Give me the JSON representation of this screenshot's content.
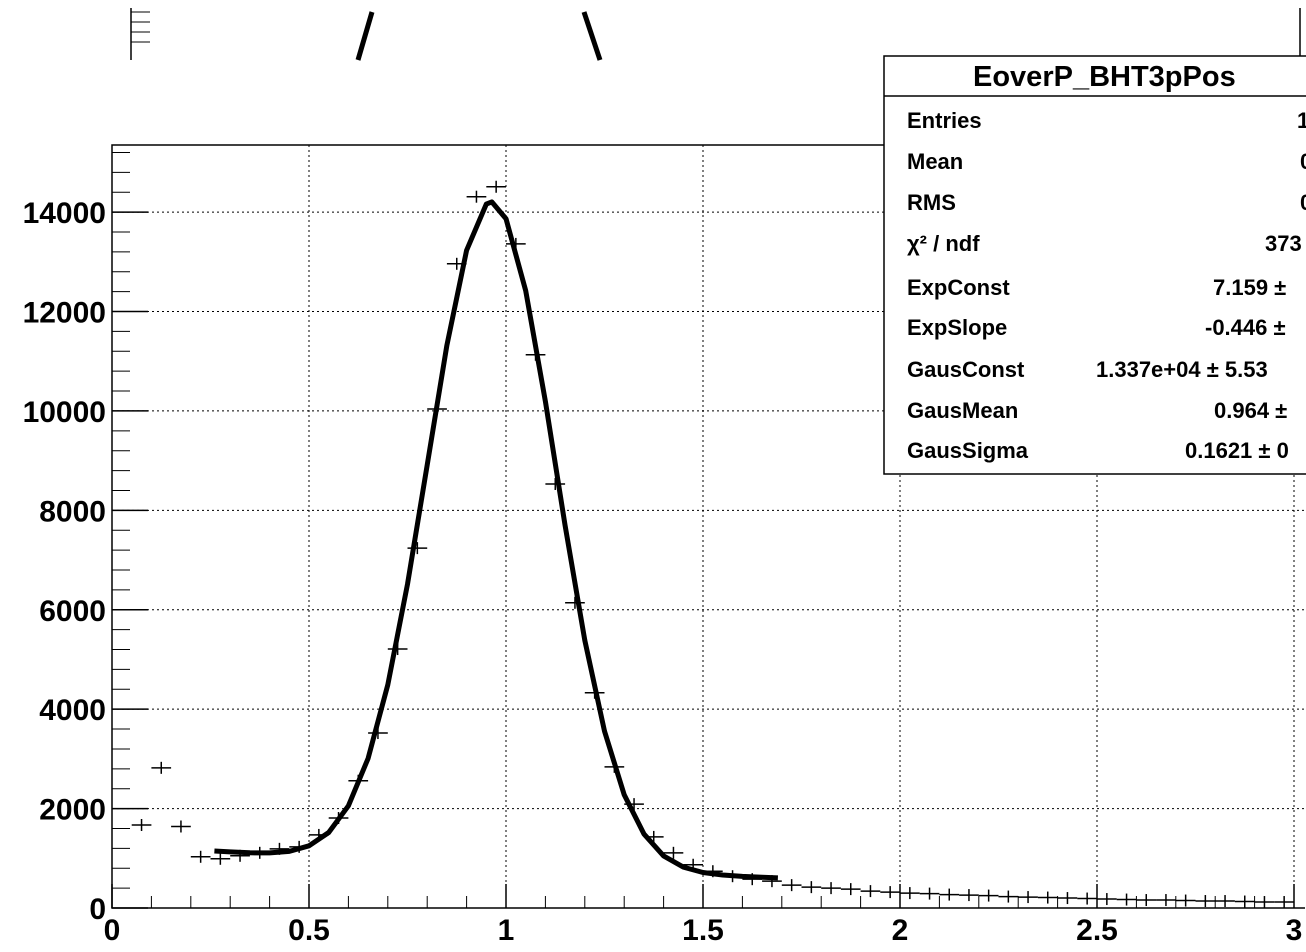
{
  "chart_data": {
    "type": "errorbar",
    "xlim": [
      0,
      3
    ],
    "ylim": [
      0,
      15350
    ],
    "xticks": [
      0,
      0.5,
      1,
      1.5,
      2,
      2.5,
      3
    ],
    "yticks": [
      0,
      2000,
      4000,
      6000,
      8000,
      10000,
      12000,
      14000
    ],
    "grid": true,
    "color": "#000000",
    "x": [
      0.075,
      0.125,
      0.175,
      0.225,
      0.275,
      0.325,
      0.375,
      0.425,
      0.475,
      0.525,
      0.575,
      0.625,
      0.675,
      0.725,
      0.775,
      0.825,
      0.875,
      0.925,
      0.975,
      1.025,
      1.075,
      1.125,
      1.175,
      1.225,
      1.275,
      1.325,
      1.375,
      1.425,
      1.475,
      1.525,
      1.575,
      1.625,
      1.675,
      1.725,
      1.775,
      1.825,
      1.875,
      1.925,
      1.975,
      2.025,
      2.075,
      2.125,
      2.175,
      2.225,
      2.275,
      2.325,
      2.375,
      2.425,
      2.475,
      2.525,
      2.575,
      2.625,
      2.675,
      2.725,
      2.775,
      2.825,
      2.875,
      2.925,
      2.975
    ],
    "values": [
      1670,
      2820,
      1640,
      1030,
      990,
      1050,
      1110,
      1190,
      1230,
      1470,
      1810,
      2560,
      3520,
      5210,
      7240,
      10040,
      12960,
      14310,
      14510,
      13360,
      11130,
      8530,
      6140,
      4330,
      2840,
      2090,
      1430,
      1110,
      870,
      740,
      640,
      580,
      540,
      460,
      420,
      400,
      380,
      340,
      320,
      300,
      290,
      270,
      260,
      250,
      230,
      220,
      210,
      200,
      190,
      180,
      170,
      160,
      160,
      150,
      140,
      140,
      130,
      120,
      120
    ],
    "fit": {
      "color": "#000000",
      "x": [
        0.26,
        0.3,
        0.35,
        0.4,
        0.45,
        0.5,
        0.55,
        0.6,
        0.65,
        0.7,
        0.75,
        0.8,
        0.85,
        0.9,
        0.95,
        0.964,
        1.0,
        1.05,
        1.1,
        1.15,
        1.2,
        1.25,
        1.3,
        1.35,
        1.4,
        1.45,
        1.5,
        1.55,
        1.6,
        1.65,
        1.69
      ],
      "values": [
        1146,
        1128,
        1110,
        1108,
        1139,
        1251,
        1518,
        2057,
        3010,
        4491,
        6515,
        8913,
        11323,
        13231,
        14162,
        14206,
        13867,
        12419,
        10191,
        7696,
        5386,
        3558,
        2280,
        1490,
        1048,
        823,
        715,
        664,
        636,
        619,
        605
      ]
    },
    "stats": {
      "title": "EoverP_BHT3pPos",
      "rows": [
        {
          "label": "Entries",
          "value": "1"
        },
        {
          "label": "Mean",
          "value": "0"
        },
        {
          "label": "RMS",
          "value": "0"
        },
        {
          "label": "χ² / ndf",
          "value": "373"
        },
        {
          "label": "ExpConst",
          "value": "7.159 ±"
        },
        {
          "label": "ExpSlope",
          "value": "-0.446 ±"
        },
        {
          "label": "GausConst",
          "value": "1.337e+04 ± 5.53"
        },
        {
          "label": "GausMean",
          "value": "0.964 ±"
        },
        {
          "label": "GausSigma",
          "value": "0.1621 ± 0"
        }
      ]
    }
  }
}
